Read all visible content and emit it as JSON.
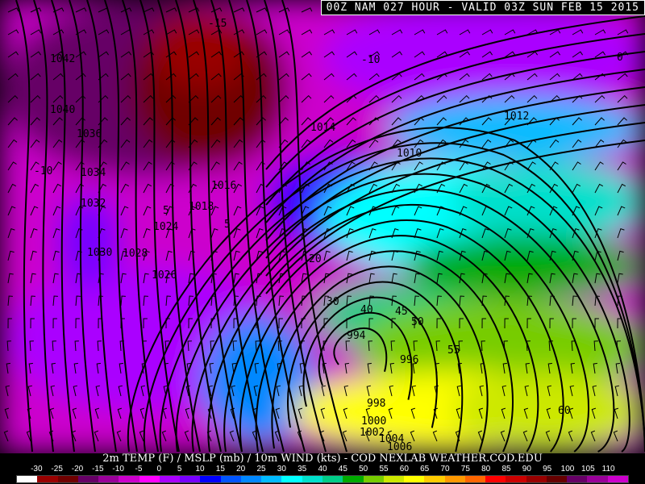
{
  "header": {
    "title": "00Z NAM 027 HOUR - VALID 03Z SUN FEB 15 2015"
  },
  "legend": {
    "caption": "2m TEMP (F) / MSLP (mb) / 10m WIND (kts) - COD NEXLAB   WEATHER.COD.EDU",
    "ticks": [
      "-30",
      "-25",
      "-20",
      "-15",
      "-10",
      "-5",
      "0",
      "5",
      "10",
      "15",
      "20",
      "25",
      "30",
      "35",
      "40",
      "45",
      "50",
      "55",
      "60",
      "65",
      "70",
      "75",
      "80",
      "85",
      "90",
      "95",
      "100",
      "105",
      "110"
    ],
    "colors": [
      "#ffffff",
      "#990000",
      "#6f0000",
      "#660066",
      "#990099",
      "#cc00cc",
      "#ff00ff",
      "#aa00ff",
      "#7700ff",
      "#0000ff",
      "#0055ff",
      "#0088ff",
      "#00bbff",
      "#00ffff",
      "#00e0cc",
      "#00cc88",
      "#00aa00",
      "#77cc00",
      "#cce800",
      "#ffff00",
      "#ffcc00",
      "#ff9900",
      "#ff6600",
      "#ff0000",
      "#cc0000",
      "#990000",
      "#660000",
      "#660066",
      "#990099",
      "#cc00cc"
    ]
  },
  "map": {
    "pressure_labels": [
      "1042",
      "1040",
      "1036",
      "1034",
      "1032",
      "1030",
      "1028",
      "1026",
      "1024",
      "1018",
      "1016",
      "1014",
      "1010",
      "1012",
      "994",
      "996",
      "998",
      "1000",
      "1002",
      "1004",
      "1006"
    ],
    "temp_labels": [
      "-15",
      "-10",
      "-10",
      "0",
      "5",
      "5",
      "20",
      "30",
      "40",
      "45",
      "50",
      "55",
      "60"
    ]
  }
}
